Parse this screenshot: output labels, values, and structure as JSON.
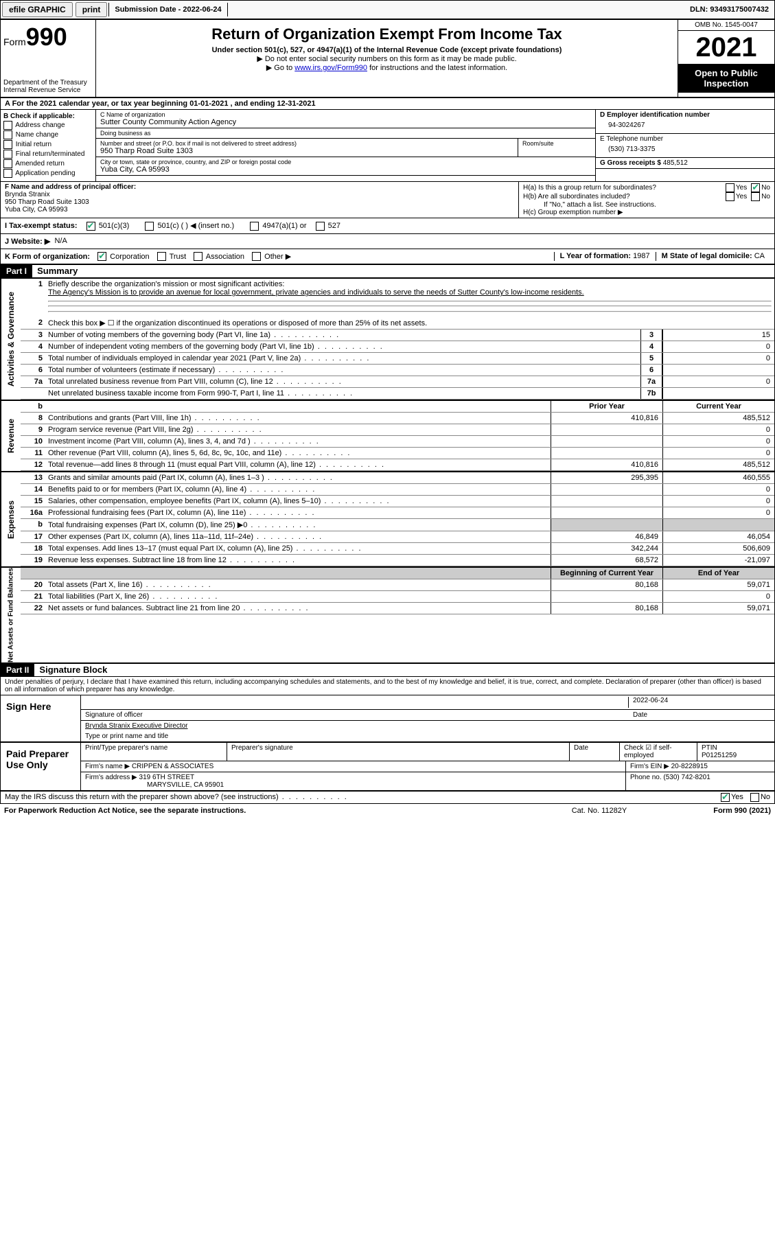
{
  "topbar": {
    "efile_label": "efile GRAPHIC",
    "print_label": "print",
    "submission_label": "Submission Date - 2022-06-24",
    "dln_label": "DLN: 93493175007432"
  },
  "header": {
    "form_word": "Form",
    "form_num": "990",
    "dept": "Department of the Treasury",
    "irs": "Internal Revenue Service",
    "title": "Return of Organization Exempt From Income Tax",
    "subtitle": "Under section 501(c), 527, or 4947(a)(1) of the Internal Revenue Code (except private foundations)",
    "note1": "▶ Do not enter social security numbers on this form as it may be made public.",
    "note2_pre": "▶ Go to ",
    "note2_link": "www.irs.gov/Form990",
    "note2_post": " for instructions and the latest information.",
    "omb": "OMB No. 1545-0047",
    "year": "2021",
    "open": "Open to Public Inspection"
  },
  "row_a": "A For the 2021 calendar year, or tax year beginning 01-01-2021   , and ending 12-31-2021",
  "block_b": {
    "title": "B Check if applicable:",
    "opts": [
      "Address change",
      "Name change",
      "Initial return",
      "Final return/terminated",
      "Amended return",
      "Application pending"
    ]
  },
  "block_c": {
    "name_label": "C Name of organization",
    "name": "Sutter County Community Action Agency",
    "dba_label": "Doing business as",
    "dba": "",
    "addr_label": "Number and street (or P.O. box if mail is not delivered to street address)",
    "room_label": "Room/suite",
    "addr": "950 Tharp Road Suite 1303",
    "city_label": "City or town, state or province, country, and ZIP or foreign postal code",
    "city": "Yuba City, CA  95993"
  },
  "block_d": {
    "ein_label": "D Employer identification number",
    "ein": "94-3024267",
    "tel_label": "E Telephone number",
    "tel": "(530) 713-3375",
    "gross_label": "G Gross receipts $",
    "gross": "485,512"
  },
  "block_f": {
    "label": "F Name and address of principal officer:",
    "name": "Brynda Stranix",
    "addr1": "950 Tharp Road Suite 1303",
    "addr2": "Yuba City, CA  95993"
  },
  "block_h": {
    "ha": "H(a)  Is this a group return for subordinates?",
    "hb": "H(b)  Are all subordinates included?",
    "hb_note": "If \"No,\" attach a list. See instructions.",
    "hc": "H(c)  Group exemption number ▶",
    "yes": "Yes",
    "no": "No"
  },
  "status": {
    "i_label": "I  Tax-exempt status:",
    "c3": "501(c)(3)",
    "c": "501(c) (  ) ◀ (insert no.)",
    "a1": "4947(a)(1) or",
    "s527": "527",
    "j_label": "J  Website: ▶",
    "j_val": "N/A"
  },
  "row_k": {
    "k_label": "K Form of organization:",
    "corp": "Corporation",
    "trust": "Trust",
    "assoc": "Association",
    "other": "Other ▶",
    "l_label": "L Year of formation:",
    "l_val": "1987",
    "m_label": "M State of legal domicile:",
    "m_val": "CA"
  },
  "part1": {
    "part": "Part I",
    "title": "Summary",
    "q1_label": "Briefly describe the organization's mission or most significant activities:",
    "q1_text": "The Agency's Mission is to provide an avenue for local government, private agencies and individuals to serve the needs of Sutter County's low-income residents.",
    "q2": "Check this box ▶ ☐ if the organization discontinued its operations or disposed of more than 25% of its net assets.",
    "rows": [
      {
        "n": "3",
        "desc": "Number of voting members of the governing body (Part VI, line 1a)",
        "box": "3",
        "v": "15"
      },
      {
        "n": "4",
        "desc": "Number of independent voting members of the governing body (Part VI, line 1b)",
        "box": "4",
        "v": "0"
      },
      {
        "n": "5",
        "desc": "Total number of individuals employed in calendar year 2021 (Part V, line 2a)",
        "box": "5",
        "v": "0"
      },
      {
        "n": "6",
        "desc": "Total number of volunteers (estimate if necessary)",
        "box": "6",
        "v": ""
      },
      {
        "n": "7a",
        "desc": "Total unrelated business revenue from Part VIII, column (C), line 12",
        "box": "7a",
        "v": "0"
      },
      {
        "n": "",
        "desc": "Net unrelated business taxable income from Form 990-T, Part I, line 11",
        "box": "7b",
        "v": ""
      }
    ],
    "hdr_b": "b",
    "hdr_prior": "Prior Year",
    "hdr_curr": "Current Year",
    "rev": [
      {
        "n": "8",
        "desc": "Contributions and grants (Part VIII, line 1h)",
        "p": "410,816",
        "c": "485,512"
      },
      {
        "n": "9",
        "desc": "Program service revenue (Part VIII, line 2g)",
        "p": "",
        "c": "0"
      },
      {
        "n": "10",
        "desc": "Investment income (Part VIII, column (A), lines 3, 4, and 7d )",
        "p": "",
        "c": "0"
      },
      {
        "n": "11",
        "desc": "Other revenue (Part VIII, column (A), lines 5, 6d, 8c, 9c, 10c, and 11e)",
        "p": "",
        "c": "0"
      },
      {
        "n": "12",
        "desc": "Total revenue—add lines 8 through 11 (must equal Part VIII, column (A), line 12)",
        "p": "410,816",
        "c": "485,512"
      }
    ],
    "exp": [
      {
        "n": "13",
        "desc": "Grants and similar amounts paid (Part IX, column (A), lines 1–3 )",
        "p": "295,395",
        "c": "460,555"
      },
      {
        "n": "14",
        "desc": "Benefits paid to or for members (Part IX, column (A), line 4)",
        "p": "",
        "c": "0"
      },
      {
        "n": "15",
        "desc": "Salaries, other compensation, employee benefits (Part IX, column (A), lines 5–10)",
        "p": "",
        "c": "0"
      },
      {
        "n": "16a",
        "desc": "Professional fundraising fees (Part IX, column (A), line 11e)",
        "p": "",
        "c": "0"
      },
      {
        "n": "b",
        "desc": "Total fundraising expenses (Part IX, column (D), line 25) ▶0",
        "p": "grey",
        "c": "grey"
      },
      {
        "n": "17",
        "desc": "Other expenses (Part IX, column (A), lines 11a–11d, 11f–24e)",
        "p": "46,849",
        "c": "46,054"
      },
      {
        "n": "18",
        "desc": "Total expenses. Add lines 13–17 (must equal Part IX, column (A), line 25)",
        "p": "342,244",
        "c": "506,609"
      },
      {
        "n": "19",
        "desc": "Revenue less expenses. Subtract line 18 from line 12",
        "p": "68,572",
        "c": "-21,097"
      }
    ],
    "hdr_beg": "Beginning of Current Year",
    "hdr_end": "End of Year",
    "net": [
      {
        "n": "20",
        "desc": "Total assets (Part X, line 16)",
        "p": "80,168",
        "c": "59,071"
      },
      {
        "n": "21",
        "desc": "Total liabilities (Part X, line 26)",
        "p": "",
        "c": "0"
      },
      {
        "n": "22",
        "desc": "Net assets or fund balances. Subtract line 21 from line 20",
        "p": "80,168",
        "c": "59,071"
      }
    ],
    "side_gov": "Activities & Governance",
    "side_rev": "Revenue",
    "side_exp": "Expenses",
    "side_net": "Net Assets or Fund Balances"
  },
  "part2": {
    "part": "Part II",
    "title": "Signature Block",
    "decl": "Under penalties of perjury, I declare that I have examined this return, including accompanying schedules and statements, and to the best of my knowledge and belief, it is true, correct, and complete. Declaration of preparer (other than officer) is based on all information of which preparer has any knowledge.",
    "sign_here": "Sign Here",
    "sig_officer": "Signature of officer",
    "sig_date": "2022-06-24",
    "date_label": "Date",
    "sig_name": "Brynda Stranix  Executive Director",
    "sig_name_label": "Type or print name and title",
    "paid": "Paid Preparer Use Only",
    "prep_name_label": "Print/Type preparer's name",
    "prep_sig_label": "Preparer's signature",
    "prep_date_label": "Date",
    "check_self": "Check ☑ if self-employed",
    "ptin_label": "PTIN",
    "ptin": "P01251259",
    "firm_name_label": "Firm's name    ▶",
    "firm_name": "CRIPPEN & ASSOCIATES",
    "firm_ein_label": "Firm's EIN ▶",
    "firm_ein": "20-8228915",
    "firm_addr_label": "Firm's address ▶",
    "firm_addr1": "319 6TH STREET",
    "firm_addr2": "MARYSVILLE, CA  95901",
    "phone_label": "Phone no.",
    "phone": "(530) 742-8201",
    "may_irs": "May the IRS discuss this return with the preparer shown above? (see instructions)",
    "yes": "Yes",
    "no": "No"
  },
  "footer": {
    "pra": "For Paperwork Reduction Act Notice, see the separate instructions.",
    "cat": "Cat. No. 11282Y",
    "form": "Form 990 (2021)"
  }
}
